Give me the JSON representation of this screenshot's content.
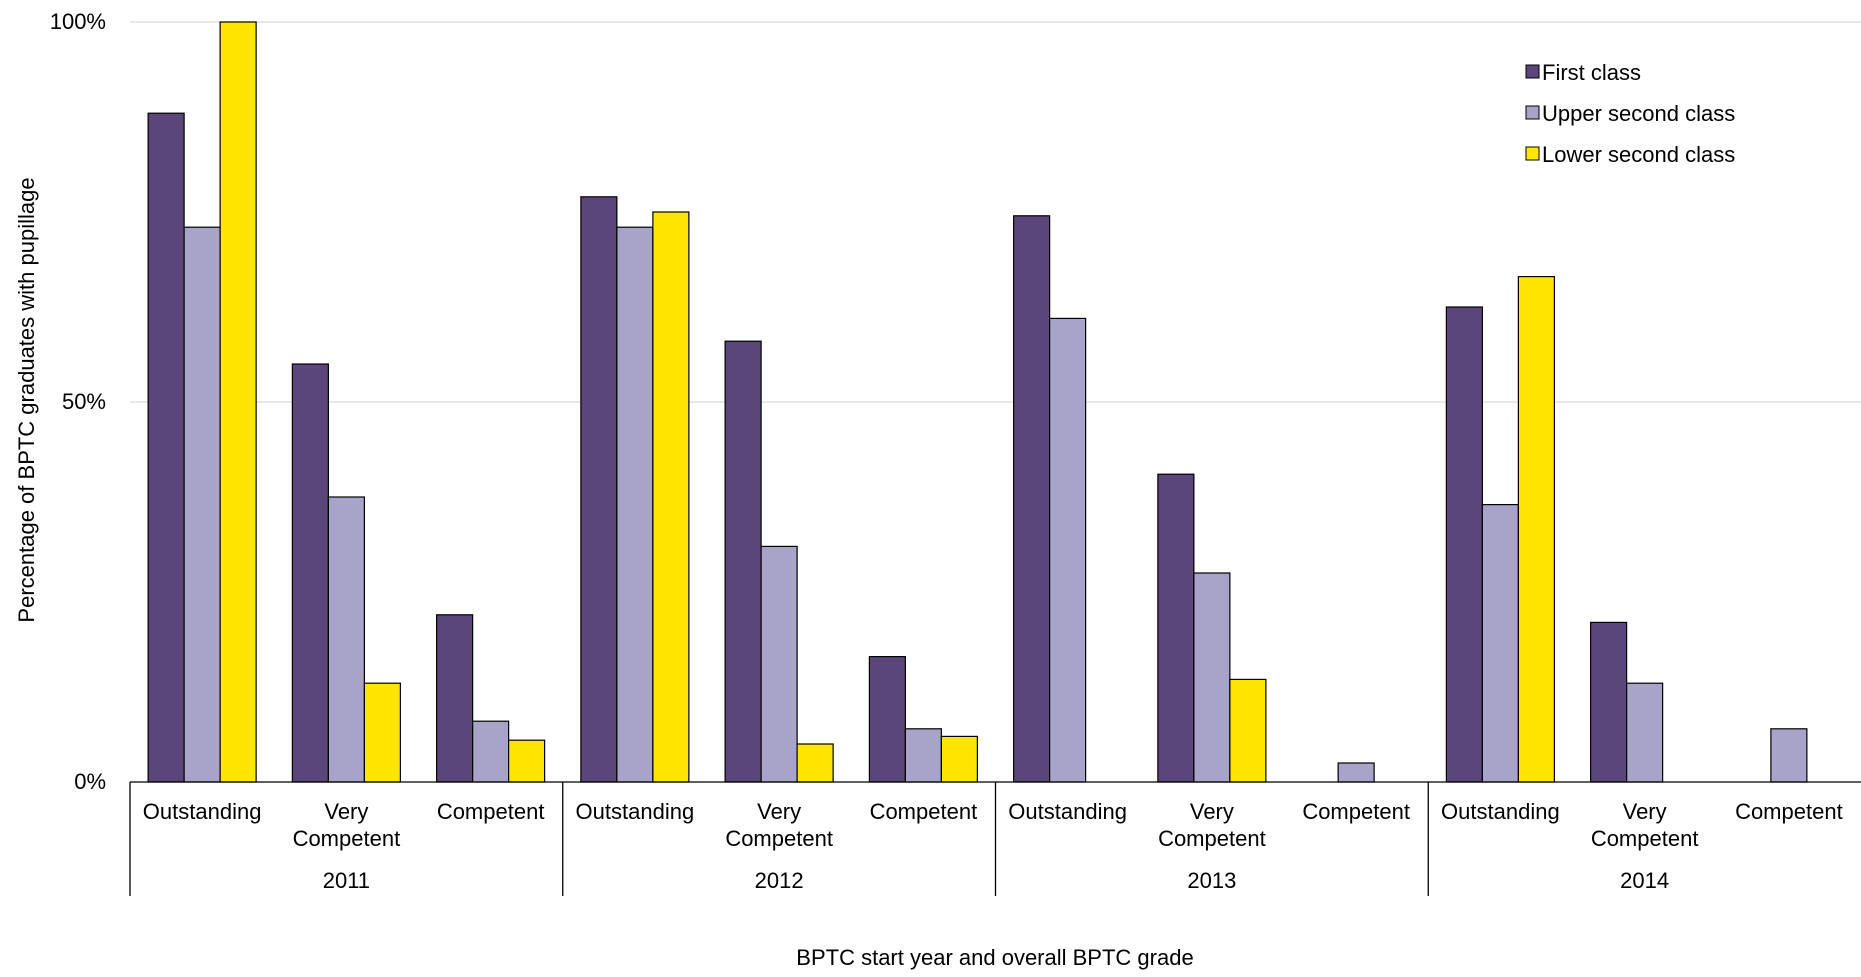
{
  "chart_data": {
    "type": "bar",
    "title": "",
    "xlabel": "BPTC start year and overall BPTC grade",
    "ylabel": "Percentage of BPTC graduates with pupillage",
    "ylim": [
      0,
      100
    ],
    "y_ticks": [
      "0%",
      "50%",
      "100%"
    ],
    "grid": true,
    "legend_position": "top-right",
    "groups": [
      {
        "label": "2011",
        "categories": [
          "Outstanding",
          "Very Competent",
          "Competent"
        ]
      },
      {
        "label": "2012",
        "categories": [
          "Outstanding",
          "Very Competent",
          "Competent"
        ]
      },
      {
        "label": "2013",
        "categories": [
          "Outstanding",
          "Very Competent",
          "Competent"
        ]
      },
      {
        "label": "2014",
        "categories": [
          "Outstanding",
          "Very Competent",
          "Competent"
        ]
      }
    ],
    "series": [
      {
        "name": "First class",
        "color": "#5a467a",
        "values": [
          88,
          55,
          22,
          77,
          58,
          16.5,
          74.5,
          40.5,
          null,
          62.5,
          21,
          null
        ]
      },
      {
        "name": "Upper second class",
        "color": "#a8a3c8",
        "values": [
          73,
          37.5,
          8,
          73,
          31,
          7,
          61,
          27.5,
          2.5,
          36.5,
          13,
          7
        ]
      },
      {
        "name": "Lower second class",
        "color": "#ffe500",
        "values": [
          100,
          13,
          5.5,
          75,
          5,
          6,
          null,
          13.5,
          null,
          66.5,
          null,
          null
        ]
      }
    ]
  }
}
